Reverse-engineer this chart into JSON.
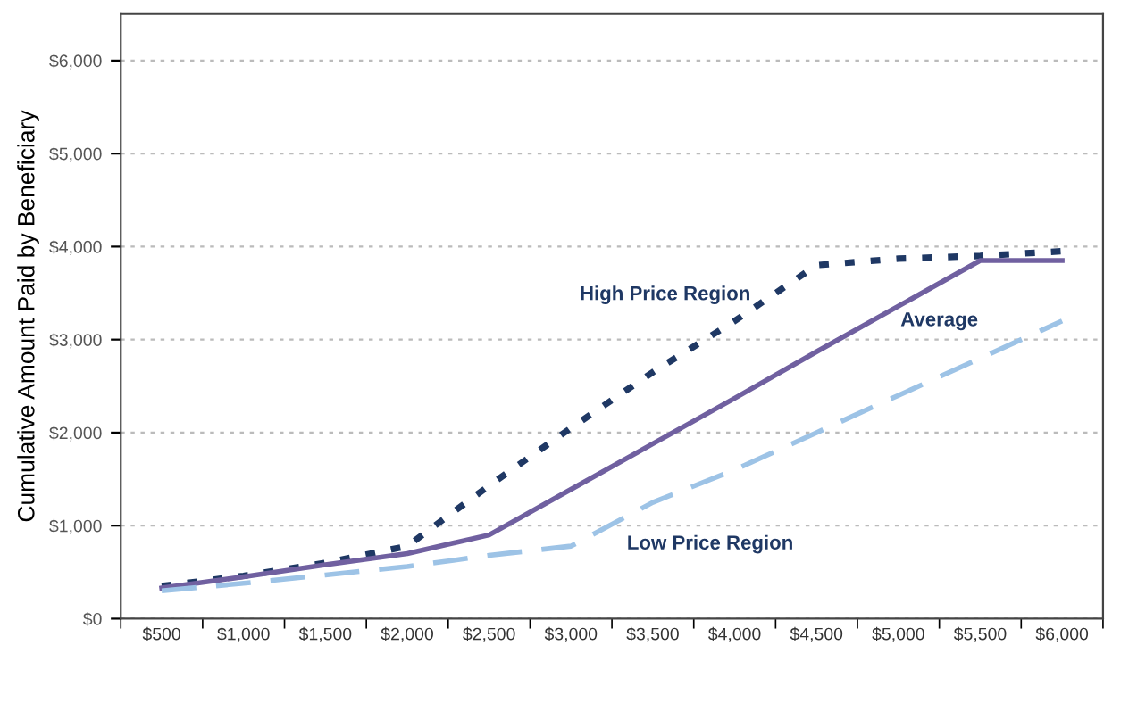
{
  "chart_data": {
    "type": "line",
    "ylabel": "Cumulative Amount Paid by Beneficiary",
    "categories": [
      "$500",
      "$1,000",
      "$1,500",
      "$2,000",
      "$2,500",
      "$3,000",
      "$3,500",
      "$4,000",
      "$4,500",
      "$5,000",
      "$5,500",
      "$6,000"
    ],
    "series": [
      {
        "name": "High Price Region",
        "color": "#1f3864",
        "line_style": "dotted",
        "values": [
          350,
          460,
          600,
          780,
          1430,
          2050,
          2650,
          3200,
          3800,
          3870,
          3900,
          3950
        ]
      },
      {
        "name": "Average",
        "color": "#7060a0",
        "line_style": "solid",
        "values": [
          330,
          450,
          580,
          700,
          900,
          1390,
          1880,
          2370,
          2870,
          3360,
          3850,
          3850
        ]
      },
      {
        "name": "Low Price Region",
        "color": "#9dc3e6",
        "line_style": "dashed",
        "values": [
          300,
          380,
          470,
          560,
          680,
          780,
          1250,
          1600,
          2000,
          2400,
          2800,
          3200
        ]
      }
    ],
    "ylim": [
      0,
      6500
    ],
    "yticks": [
      {
        "value": 0,
        "label": "$0"
      },
      {
        "value": 1000,
        "label": "$1,000"
      },
      {
        "value": 2000,
        "label": "$2,000"
      },
      {
        "value": 3000,
        "label": "$3,000"
      },
      {
        "value": 4000,
        "label": "$4,000"
      },
      {
        "value": 5000,
        "label": "$5,000"
      },
      {
        "value": 6000,
        "label": "$6,000"
      }
    ],
    "grid": "y",
    "legend": false,
    "marker": "none"
  }
}
